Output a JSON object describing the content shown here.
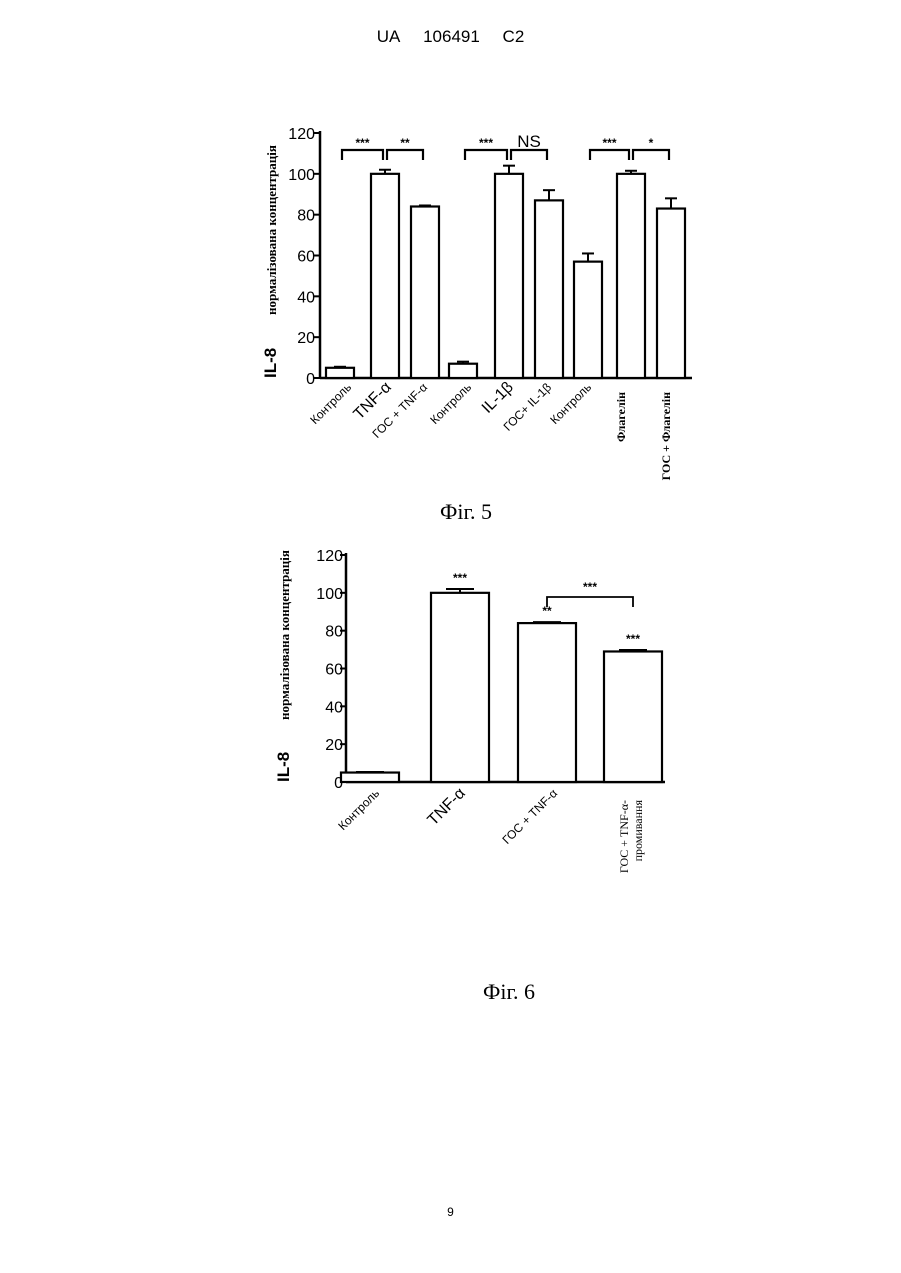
{
  "header": {
    "left": "UA",
    "number": "106491",
    "kind": "C2"
  },
  "page_number": "9",
  "chart_data": [
    {
      "type": "bar",
      "caption": "Фіг. 5",
      "ylabel_main": "IL-8",
      "ylabel_sub": "нормалізована концентрація",
      "ylim": [
        0,
        120
      ],
      "yticks": [
        "0",
        "20",
        "40",
        "60",
        "80",
        "100",
        "120"
      ],
      "categories": [
        "Контроль",
        "TNF-α",
        "ГОС + TNF-α",
        "Контроль",
        "IL-1β",
        "ГОС+ IL-1β",
        "Контроль",
        "Флагелін",
        "ГОС + Флагелін"
      ],
      "values": [
        5,
        100,
        84,
        7,
        100,
        87,
        57,
        100,
        83
      ],
      "errors": [
        0.5,
        2,
        0.5,
        1,
        4,
        5,
        4,
        1.5,
        5
      ],
      "significance": [
        {
          "from": 0,
          "to": 1,
          "label": "***"
        },
        {
          "from": 1,
          "to": 2,
          "label": "**"
        },
        {
          "from": 3,
          "to": 4,
          "label": "***"
        },
        {
          "from": 4,
          "to": 5,
          "label": "NS"
        },
        {
          "from": 6,
          "to": 7,
          "label": "***"
        },
        {
          "from": 7,
          "to": 8,
          "label": "*"
        }
      ]
    },
    {
      "type": "bar",
      "caption": "Фіг. 6",
      "ylabel_main": "IL-8",
      "ylabel_sub": "нормалізована концентрація",
      "ylim": [
        0,
        120
      ],
      "yticks": [
        "0",
        "20",
        "40",
        "60",
        "80",
        "100",
        "120"
      ],
      "categories": [
        "Контроль",
        "TNF-α",
        "ГОС + TNF-α",
        "ГОС + TNF-α-\nпромивання"
      ],
      "values": [
        5,
        100,
        84,
        69
      ],
      "errors": [
        0.3,
        2,
        0.5,
        0.8
      ],
      "bar_labels": [
        "",
        "***",
        "**",
        "***"
      ],
      "significance": [
        {
          "from": 2,
          "to": 3,
          "label": "***"
        }
      ]
    }
  ]
}
